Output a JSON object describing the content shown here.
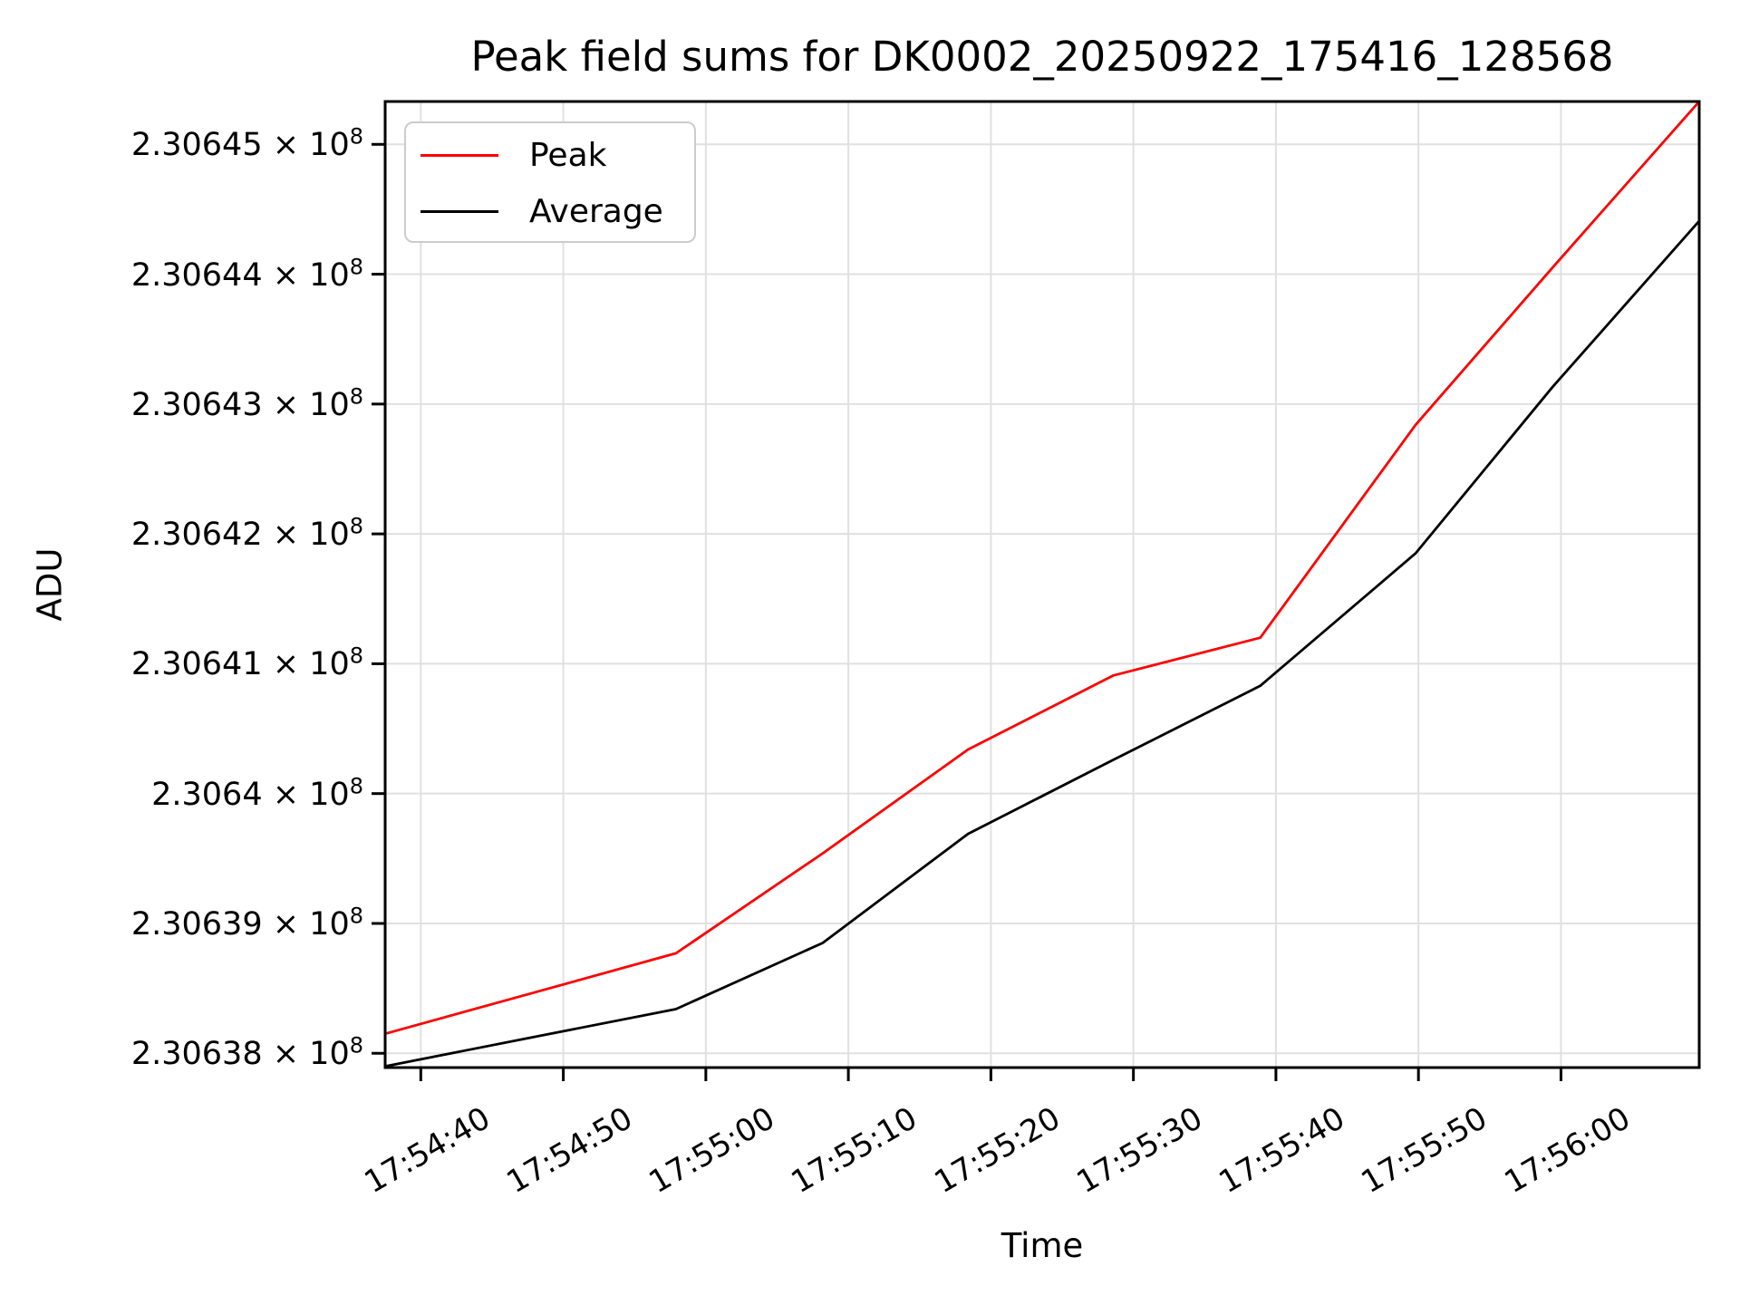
{
  "title": "Peak field sums for DK0002_20250922_175416_128568",
  "axes": {
    "x_label": "Time",
    "y_label": "ADU"
  },
  "legend": {
    "position": "upper-left",
    "items": [
      {
        "label": "Peak",
        "color": "#ff0000"
      },
      {
        "label": "Average",
        "color": "#000000"
      }
    ]
  },
  "colors": {
    "peak_line": "#ff0000",
    "average_line": "#000000",
    "grid": "#e0e0e0",
    "spine": "#000000",
    "legend_border": "#cccccc",
    "background": "#ffffff",
    "text": "#000000"
  },
  "chart_data": {
    "type": "line",
    "title": "Peak field sums for DK0002_20250922_175416_128568",
    "xlabel": "Time",
    "ylabel": "ADU",
    "grid": true,
    "legend_position": "upper left",
    "x_unit": "seconds after 17:54:00",
    "x": [
      37.5,
      47.7,
      57.9,
      68.2,
      78.4,
      88.6,
      98.9,
      109.8,
      119.4,
      129.7
    ],
    "x_labels_sampled": [
      "17:54:38",
      "17:54:48",
      "17:54:58",
      "17:55:08",
      "17:55:18",
      "17:55:29",
      "17:55:39",
      "17:55:50",
      "17:55:59",
      "17:56:10"
    ],
    "series": [
      {
        "name": "Peak",
        "color": "#ff0000",
        "values": [
          230638150,
          230638460,
          230638770,
          230639540,
          230640340,
          230640910,
          230641200,
          230642840,
          230644050,
          230645330
        ]
      },
      {
        "name": "Average",
        "color": "#000000",
        "values": [
          230637900,
          230638120,
          230638340,
          230638850,
          230639690,
          230640260,
          230640830,
          230641850,
          230643130,
          230644410
        ]
      }
    ],
    "xlim": [
      37.5,
      129.7
    ],
    "ylim": [
      230637890,
      230645330
    ],
    "x_ticks": [
      {
        "t": 40,
        "label": "17:54:40"
      },
      {
        "t": 50,
        "label": "17:54:50"
      },
      {
        "t": 60,
        "label": "17:55:00"
      },
      {
        "t": 70,
        "label": "17:55:10"
      },
      {
        "t": 80,
        "label": "17:55:20"
      },
      {
        "t": 90,
        "label": "17:55:30"
      },
      {
        "t": 100,
        "label": "17:55:40"
      },
      {
        "t": 110,
        "label": "17:55:50"
      },
      {
        "t": 120,
        "label": "17:56:00"
      }
    ],
    "y_ticks": [
      {
        "value": 230638000,
        "text": "2.30638 × 10",
        "sup": "8"
      },
      {
        "value": 230639000,
        "text": "2.30639 × 10",
        "sup": "8"
      },
      {
        "value": 230640000,
        "text": "2.3064 × 10",
        "sup": "8"
      },
      {
        "value": 230641000,
        "text": "2.30641 × 10",
        "sup": "8"
      },
      {
        "value": 230642000,
        "text": "2.30642 × 10",
        "sup": "8"
      },
      {
        "value": 230643000,
        "text": "2.30643 × 10",
        "sup": "8"
      },
      {
        "value": 230644000,
        "text": "2.30644 × 10",
        "sup": "8"
      },
      {
        "value": 230645000,
        "text": "2.30645 × 10",
        "sup": "8"
      }
    ]
  }
}
